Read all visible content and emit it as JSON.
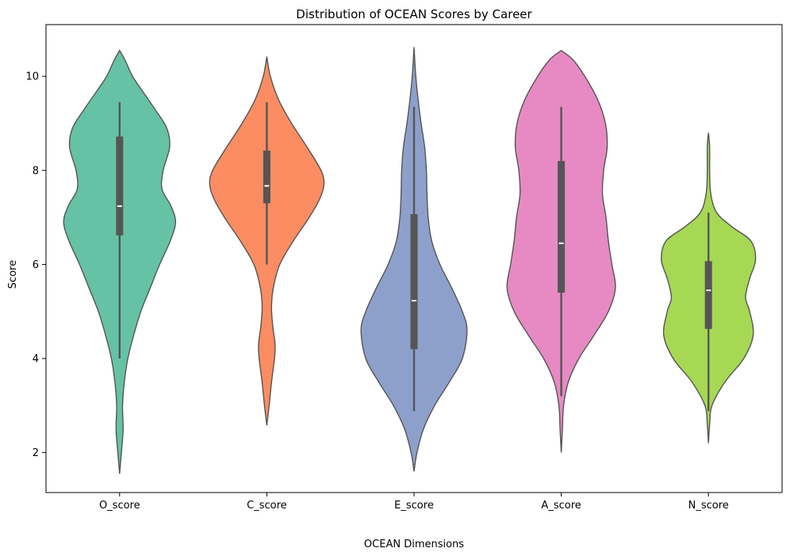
{
  "chart_data": {
    "type": "violin",
    "title": "Distribution of OCEAN Scores by Career",
    "xlabel": "OCEAN Dimensions",
    "ylabel": "Score",
    "ylim": [
      1.15,
      11.1
    ],
    "yticks": [
      2,
      4,
      6,
      8,
      10
    ],
    "grid": false,
    "categories": [
      "O_score",
      "C_score",
      "E_score",
      "A_score",
      "N_score"
    ],
    "series": [
      {
        "category": "O_score",
        "color": "#66c2a5",
        "min": 1.55,
        "max": 10.55,
        "whisker_low": 4.0,
        "q1": 6.62,
        "median": 7.24,
        "q3": 8.72,
        "whisker_high": 9.45,
        "density": [
          [
            1.55,
            0.0
          ],
          [
            2.0,
            0.03
          ],
          [
            2.5,
            0.06
          ],
          [
            3.0,
            0.05
          ],
          [
            3.5,
            0.08
          ],
          [
            4.0,
            0.14
          ],
          [
            4.5,
            0.24
          ],
          [
            5.0,
            0.36
          ],
          [
            5.5,
            0.52
          ],
          [
            6.0,
            0.68
          ],
          [
            6.5,
            0.86
          ],
          [
            6.9,
            0.95
          ],
          [
            7.25,
            0.87
          ],
          [
            7.6,
            0.72
          ],
          [
            8.0,
            0.74
          ],
          [
            8.5,
            0.85
          ],
          [
            8.9,
            0.8
          ],
          [
            9.3,
            0.6
          ],
          [
            9.7,
            0.38
          ],
          [
            10.0,
            0.22
          ],
          [
            10.35,
            0.09
          ],
          [
            10.55,
            0.0
          ]
        ]
      },
      {
        "category": "C_score",
        "color": "#fc8d62",
        "min": 2.58,
        "max": 10.42,
        "whisker_low": 6.0,
        "q1": 7.3,
        "median": 7.67,
        "q3": 8.42,
        "whisker_high": 9.45,
        "density": [
          [
            2.58,
            0.0
          ],
          [
            3.0,
            0.04
          ],
          [
            3.5,
            0.08
          ],
          [
            4.0,
            0.13
          ],
          [
            4.3,
            0.14
          ],
          [
            4.7,
            0.1
          ],
          [
            5.1,
            0.08
          ],
          [
            5.5,
            0.11
          ],
          [
            6.0,
            0.22
          ],
          [
            6.5,
            0.45
          ],
          [
            7.0,
            0.72
          ],
          [
            7.4,
            0.9
          ],
          [
            7.7,
            0.97
          ],
          [
            8.0,
            0.92
          ],
          [
            8.5,
            0.68
          ],
          [
            9.0,
            0.42
          ],
          [
            9.5,
            0.2
          ],
          [
            10.0,
            0.06
          ],
          [
            10.42,
            0.0
          ]
        ]
      },
      {
        "category": "E_score",
        "color": "#8da0cb",
        "min": 1.6,
        "max": 10.62,
        "whisker_low": 2.88,
        "q1": 4.2,
        "median": 5.23,
        "q3": 7.07,
        "whisker_high": 9.35,
        "density": [
          [
            1.6,
            0.0
          ],
          [
            2.0,
            0.05
          ],
          [
            2.5,
            0.16
          ],
          [
            3.0,
            0.35
          ],
          [
            3.5,
            0.6
          ],
          [
            4.0,
            0.82
          ],
          [
            4.6,
            0.9
          ],
          [
            5.0,
            0.82
          ],
          [
            5.5,
            0.64
          ],
          [
            6.0,
            0.44
          ],
          [
            6.5,
            0.3
          ],
          [
            7.0,
            0.24
          ],
          [
            7.5,
            0.22
          ],
          [
            8.0,
            0.21
          ],
          [
            8.5,
            0.18
          ],
          [
            9.0,
            0.12
          ],
          [
            9.5,
            0.07
          ],
          [
            10.0,
            0.03
          ],
          [
            10.62,
            0.0
          ]
        ]
      },
      {
        "category": "A_score",
        "color": "#e78ac3",
        "min": 2.0,
        "max": 10.55,
        "whisker_low": 3.2,
        "q1": 5.4,
        "median": 6.45,
        "q3": 8.2,
        "whisker_high": 9.35,
        "density": [
          [
            2.0,
            0.0
          ],
          [
            2.5,
            0.02
          ],
          [
            3.0,
            0.04
          ],
          [
            3.5,
            0.12
          ],
          [
            4.0,
            0.3
          ],
          [
            4.5,
            0.56
          ],
          [
            5.0,
            0.8
          ],
          [
            5.5,
            0.92
          ],
          [
            6.0,
            0.86
          ],
          [
            6.5,
            0.8
          ],
          [
            7.0,
            0.76
          ],
          [
            7.5,
            0.7
          ],
          [
            8.0,
            0.72
          ],
          [
            8.5,
            0.78
          ],
          [
            9.0,
            0.75
          ],
          [
            9.5,
            0.62
          ],
          [
            10.0,
            0.4
          ],
          [
            10.35,
            0.2
          ],
          [
            10.55,
            0.0
          ]
        ]
      },
      {
        "category": "N_score",
        "color": "#a6d854",
        "min": 2.2,
        "max": 8.8,
        "whisker_low": 2.88,
        "q1": 4.63,
        "median": 5.45,
        "q3": 6.07,
        "whisker_high": 7.1,
        "density": [
          [
            2.2,
            0.0
          ],
          [
            2.6,
            0.02
          ],
          [
            3.0,
            0.06
          ],
          [
            3.5,
            0.28
          ],
          [
            4.0,
            0.6
          ],
          [
            4.5,
            0.76
          ],
          [
            5.0,
            0.7
          ],
          [
            5.3,
            0.63
          ],
          [
            5.7,
            0.7
          ],
          [
            6.1,
            0.8
          ],
          [
            6.5,
            0.72
          ],
          [
            6.8,
            0.4
          ],
          [
            7.1,
            0.14
          ],
          [
            7.5,
            0.04
          ],
          [
            8.0,
            0.02
          ],
          [
            8.5,
            0.02
          ],
          [
            8.8,
            0.0
          ]
        ]
      }
    ]
  }
}
